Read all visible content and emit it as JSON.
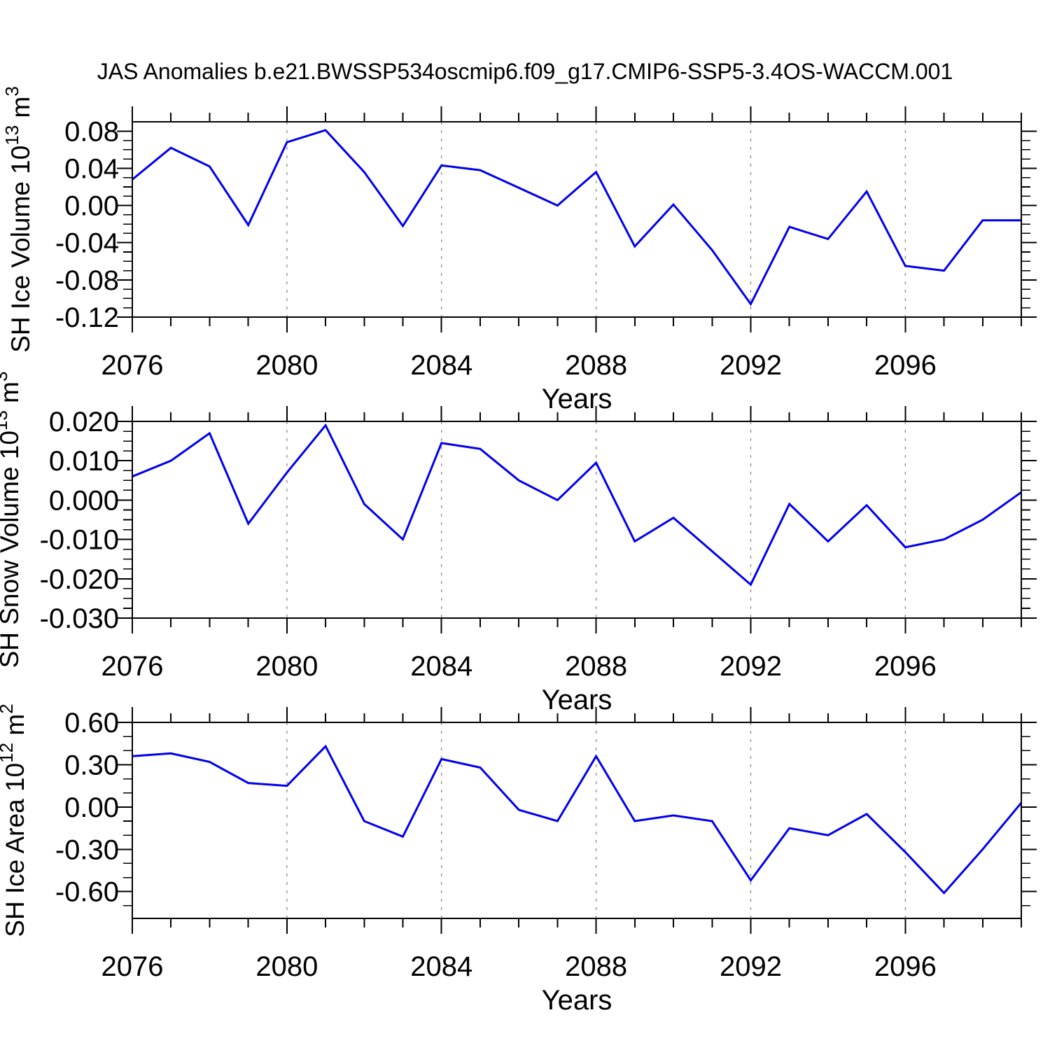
{
  "title": "JAS Anomalies b.e21.BWSSP534oscmip6.f09_g17.CMIP6-SSP5-3.4OS-WACCM.001",
  "style": {
    "line_color": "#0000EE",
    "grid_color": "#7F7F7F",
    "axis_color": "#000000",
    "text_color": "#000000",
    "background": "#FFFFFF"
  },
  "x_axis": {
    "label": "Years",
    "xlim": [
      2076,
      2099
    ],
    "major_ticks": [
      2076,
      2080,
      2084,
      2088,
      2092,
      2096
    ],
    "major_tick_labels": [
      "2076",
      "2080",
      "2084",
      "2088",
      "2092",
      "2096"
    ],
    "minor_step_years": 1,
    "gridlines": [
      2080,
      2084,
      2088,
      2092,
      2096
    ]
  },
  "chart_data": [
    {
      "type": "line",
      "title": "JAS Anomalies b.e21.BWSSP534oscmip6.f09_g17.CMIP6-SSP5-3.4OS-WACCM.001",
      "ylabel": "SH Ice Volume 10^13 m^3",
      "ylabel_parts": [
        {
          "t": "SH Ice Volume 10"
        },
        {
          "t": "13",
          "sup": true
        },
        {
          "t": " m"
        },
        {
          "t": "3",
          "sup": true
        }
      ],
      "xlabel": "Years",
      "x": [
        2076,
        2077,
        2078,
        2079,
        2080,
        2081,
        2082,
        2083,
        2084,
        2085,
        2086,
        2087,
        2088,
        2089,
        2090,
        2091,
        2092,
        2093,
        2094,
        2095,
        2096,
        2097,
        2098,
        2099
      ],
      "values": [
        0.028,
        0.062,
        0.042,
        -0.021,
        0.068,
        0.081,
        0.036,
        -0.022,
        0.043,
        0.038,
        0.019,
        0.0,
        0.036,
        -0.044,
        0.001,
        -0.048,
        -0.106,
        -0.023,
        -0.036,
        0.015,
        -0.065,
        -0.07,
        -0.016,
        -0.016
      ],
      "ylim": [
        -0.12,
        0.09
      ],
      "ytick_values": [
        0.08,
        0.04,
        0.0,
        -0.04,
        -0.08,
        -0.12
      ],
      "ytick_labels": [
        "0.08",
        "0.04",
        "0.00",
        "-0.04",
        "-0.08",
        "-0.12"
      ],
      "minor_step": 0.01,
      "grid": "vertical-dashed",
      "legend": "none"
    },
    {
      "type": "line",
      "title": "",
      "ylabel": "SH Snow Volume 10^13 m^3",
      "ylabel_parts": [
        {
          "t": "SH Snow Volume 10"
        },
        {
          "t": "13",
          "sup": true
        },
        {
          "t": " m"
        },
        {
          "t": "3",
          "sup": true
        }
      ],
      "xlabel": "Years",
      "x": [
        2076,
        2077,
        2078,
        2079,
        2080,
        2081,
        2082,
        2083,
        2084,
        2085,
        2086,
        2087,
        2088,
        2089,
        2090,
        2091,
        2092,
        2093,
        2094,
        2095,
        2096,
        2097,
        2098,
        2099
      ],
      "values": [
        0.006,
        0.01,
        0.017,
        -0.006,
        0.007,
        0.019,
        -0.001,
        -0.01,
        0.0145,
        0.013,
        0.005,
        0.0,
        0.0095,
        -0.0105,
        -0.0045,
        -0.013,
        -0.0215,
        -0.001,
        -0.0105,
        -0.0013,
        -0.012,
        -0.01,
        -0.005,
        0.002
      ],
      "ylim": [
        -0.03,
        0.02
      ],
      "ytick_values": [
        0.02,
        0.01,
        0.0,
        -0.01,
        -0.02,
        -0.03
      ],
      "ytick_labels": [
        "0.020",
        "0.010",
        "0.000",
        "-0.010",
        "-0.020",
        "-0.030"
      ],
      "minor_step": 0.0025,
      "grid": "vertical-dashed",
      "legend": "none"
    },
    {
      "type": "line",
      "title": "",
      "ylabel": "SH Ice Area 10^12 m^2",
      "ylabel_parts": [
        {
          "t": "SH Ice Area 10"
        },
        {
          "t": "12",
          "sup": true
        },
        {
          "t": " m"
        },
        {
          "t": "2",
          "sup": true
        }
      ],
      "xlabel": "Years",
      "x": [
        2076,
        2077,
        2078,
        2079,
        2080,
        2081,
        2082,
        2083,
        2084,
        2085,
        2086,
        2087,
        2088,
        2089,
        2090,
        2091,
        2092,
        2093,
        2094,
        2095,
        2096,
        2097,
        2098,
        2099
      ],
      "values": [
        0.36,
        0.38,
        0.32,
        0.17,
        0.15,
        0.43,
        -0.1,
        -0.21,
        0.34,
        0.28,
        -0.02,
        -0.1,
        0.36,
        -0.1,
        -0.06,
        -0.1,
        -0.52,
        -0.15,
        -0.2,
        -0.05,
        -0.32,
        -0.61,
        -0.3,
        0.03
      ],
      "ylim": [
        -0.79,
        0.6
      ],
      "ytick_values": [
        0.6,
        0.3,
        0.0,
        -0.3,
        -0.6
      ],
      "ytick_labels": [
        "0.60",
        "0.30",
        "0.00",
        "-0.30",
        "-0.60"
      ],
      "minor_step": 0.1,
      "grid": "vertical-dashed",
      "legend": "none"
    }
  ]
}
